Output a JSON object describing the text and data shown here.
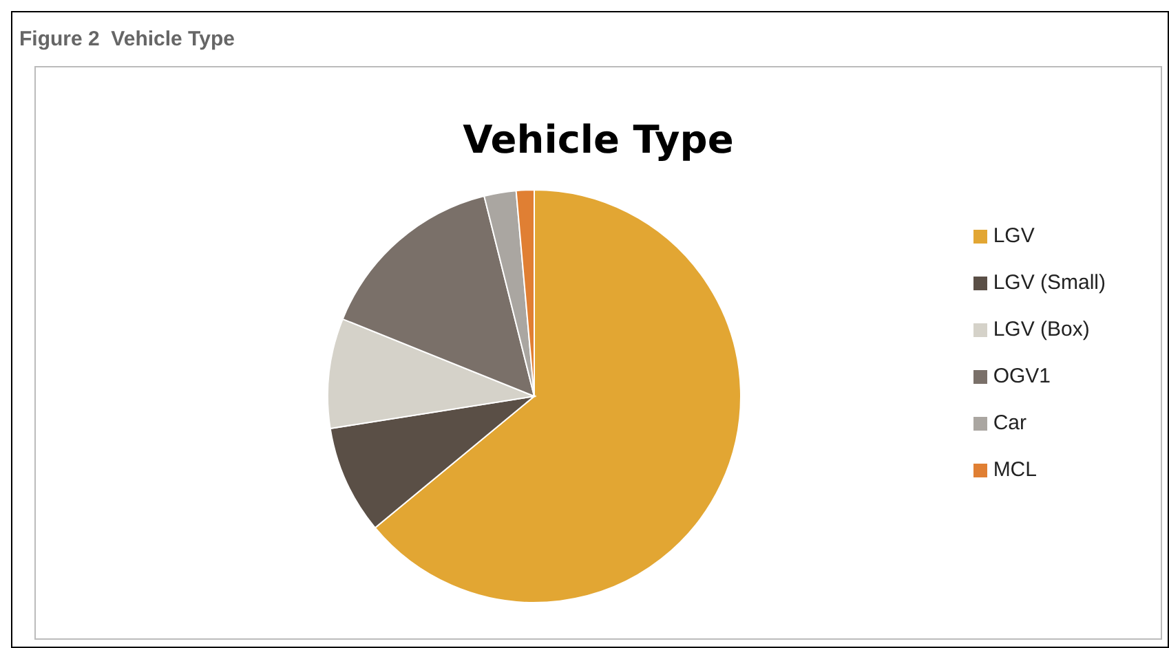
{
  "chart_data": {
    "type": "pie",
    "title": "Vehicle Type",
    "annotations": [
      "Figure 2  Vehicle Type"
    ],
    "categories": [
      "LGV",
      "LGV (Small)",
      "LGV (Box)",
      "OGV1",
      "Car",
      "MCL"
    ],
    "values": [
      64,
      8.5,
      8.6,
      15,
      2.5,
      1.4
    ],
    "colors": [
      "#e2a633",
      "#5a4f46",
      "#d5d2c9",
      "#7a7069",
      "#aaa6a1",
      "#e07f33"
    ],
    "legend": "right"
  }
}
